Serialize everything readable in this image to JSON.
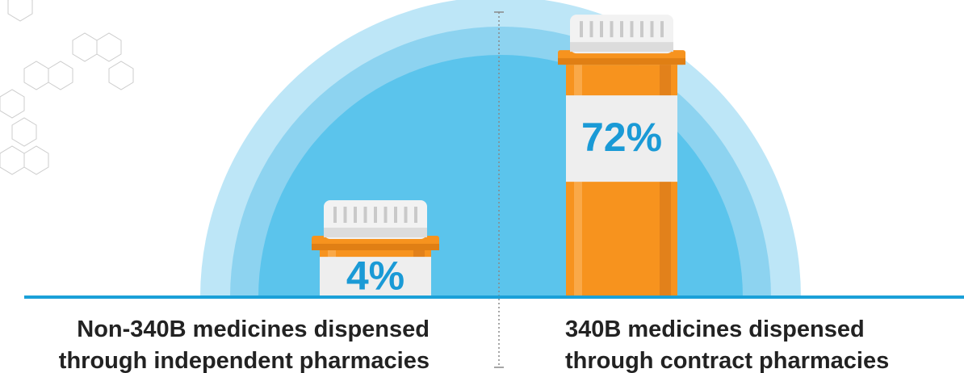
{
  "chart_data": {
    "type": "bar",
    "categories": [
      "Non-340B medicines dispensed through independent pharmacies",
      "340B medicines dispensed through contract pharmacies"
    ],
    "values": [
      4,
      72
    ],
    "value_labels": [
      "4%",
      "72%"
    ],
    "color": "#f7931e"
  }
}
